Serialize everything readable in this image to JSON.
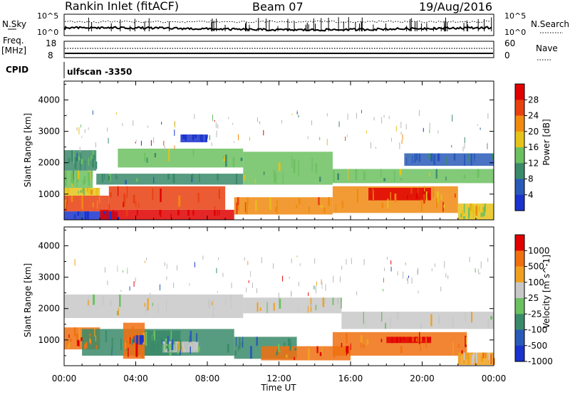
{
  "header": {
    "station": "Rankin Inlet (fitACF)",
    "beam": "Beam 07",
    "date": "19/Aug/2016"
  },
  "strips": {
    "nsky_label": "N.Sky",
    "nsky_ticks": [
      "10^5",
      "10^0"
    ],
    "nsearch_label": "N.Search",
    "nsearch_ticks": [
      "10^5",
      "10^0"
    ],
    "freq_label_1": "Freq.",
    "freq_label_2": "[MHz]",
    "freq_ticks": [
      "18",
      "8"
    ],
    "nave_label": "Nave",
    "nave_ticks": [
      "60",
      "0"
    ],
    "cpid_label": "CPID",
    "cpid_value": "ulfscan -3350"
  },
  "chart_data": [
    {
      "type": "heatmap",
      "name": "power",
      "ylabel": "Slant Range [km]",
      "yticks": [
        1000,
        2000,
        3000,
        4000
      ],
      "ylim": [
        180,
        4600
      ],
      "xlim_hours": [
        0,
        24
      ],
      "colorbar_label": "Power [dB]",
      "colorbar_ticks": [
        "4",
        "8",
        "12",
        "16",
        "20",
        "24",
        "28"
      ],
      "colors": [
        "#1a33cc",
        "#2a5ab8",
        "#3a8a6a",
        "#6cc060",
        "#e6c21a",
        "#f08a10",
        "#e84010",
        "#e00000"
      ],
      "bands": [
        {
          "t0": 0,
          "t1": 1.6,
          "r0": 1200,
          "r1": 1750,
          "level": 3
        },
        {
          "t0": 0,
          "t1": 1.8,
          "r0": 1750,
          "r1": 2400,
          "level": 2
        },
        {
          "t0": 0,
          "t1": 2.5,
          "r0": 450,
          "r1": 950,
          "level": 6
        },
        {
          "t0": 0,
          "t1": 2.0,
          "r0": 950,
          "r1": 1200,
          "level": 4
        },
        {
          "t0": 0,
          "t1": 3.0,
          "r0": 180,
          "r1": 450,
          "level": 0
        },
        {
          "t0": 2.0,
          "t1": 9.5,
          "r0": 180,
          "r1": 500,
          "level": 7
        },
        {
          "t0": 2.5,
          "t1": 9.0,
          "r0": 500,
          "r1": 1250,
          "level": 6
        },
        {
          "t0": 1.8,
          "t1": 10.0,
          "r0": 1300,
          "r1": 1650,
          "level": 2
        },
        {
          "t0": 3.0,
          "t1": 10.0,
          "r0": 1850,
          "r1": 2450,
          "level": 3
        },
        {
          "t0": 6.5,
          "t1": 8.0,
          "r0": 2650,
          "r1": 2900,
          "level": 0
        },
        {
          "t0": 9.5,
          "t1": 15.0,
          "r0": 350,
          "r1": 900,
          "level": 5
        },
        {
          "t0": 10.0,
          "t1": 15.0,
          "r0": 1300,
          "r1": 2350,
          "level": 3
        },
        {
          "t0": 15.0,
          "t1": 22.0,
          "r0": 400,
          "r1": 1250,
          "level": 5
        },
        {
          "t0": 17.0,
          "t1": 20.5,
          "r0": 800,
          "r1": 1200,
          "level": 7
        },
        {
          "t0": 15.0,
          "t1": 24.0,
          "r0": 1350,
          "r1": 1800,
          "level": 3
        },
        {
          "t0": 19.0,
          "t1": 24.0,
          "r0": 1900,
          "r1": 2300,
          "level": 1
        },
        {
          "t0": 22.0,
          "t1": 24.0,
          "r0": 180,
          "r1": 700,
          "level": 4
        }
      ]
    },
    {
      "type": "heatmap",
      "name": "velocity",
      "ylabel": "Slant Range [km]",
      "yticks": [
        1000,
        2000,
        3000,
        4000
      ],
      "ylim": [
        180,
        4600
      ],
      "xlim_hours": [
        0,
        24
      ],
      "colorbar_label": "Velocity [m s^-1]",
      "colorbar_ticks": [
        "1000",
        "500",
        "100",
        "25",
        "-25",
        "-100",
        "-500",
        "-1000"
      ],
      "colors": [
        "#1a33cc",
        "#2a5ab8",
        "#3a8a6a",
        "#6cc060",
        "#c8c8c8",
        "#f0a020",
        "#f07010",
        "#e00000"
      ],
      "bands": [
        {
          "t0": 0,
          "t1": 10.0,
          "r0": 1700,
          "r1": 2450,
          "level": 4
        },
        {
          "t0": 10.0,
          "t1": 15.5,
          "r0": 1850,
          "r1": 2350,
          "level": 4
        },
        {
          "t0": 15.5,
          "t1": 24.0,
          "r0": 1350,
          "r1": 1900,
          "level": 4
        },
        {
          "t0": 0,
          "t1": 2.0,
          "r0": 700,
          "r1": 1400,
          "level": 6
        },
        {
          "t0": 1.0,
          "t1": 9.5,
          "r0": 500,
          "r1": 1350,
          "level": 2
        },
        {
          "t0": 3.3,
          "t1": 4.5,
          "r0": 400,
          "r1": 1550,
          "level": 6
        },
        {
          "t0": 4.5,
          "t1": 6.5,
          "r0": 500,
          "r1": 1300,
          "level": 2
        },
        {
          "t0": 5.5,
          "t1": 7.5,
          "r0": 600,
          "r1": 950,
          "level": 4
        },
        {
          "t0": 3.8,
          "t1": 4.4,
          "r0": 850,
          "r1": 1150,
          "level": 0
        },
        {
          "t0": 9.5,
          "t1": 13.0,
          "r0": 400,
          "r1": 1100,
          "level": 2
        },
        {
          "t0": 11.0,
          "t1": 16.0,
          "r0": 350,
          "r1": 800,
          "level": 6
        },
        {
          "t0": 15.0,
          "t1": 22.5,
          "r0": 500,
          "r1": 1250,
          "level": 6
        },
        {
          "t0": 18.0,
          "t1": 20.5,
          "r0": 900,
          "r1": 1100,
          "level": 7
        },
        {
          "t0": 22.0,
          "t1": 24.0,
          "r0": 200,
          "r1": 600,
          "level": 5
        }
      ]
    }
  ],
  "xaxis": {
    "ticks": [
      "00:00",
      "04:00",
      "08:00",
      "12:00",
      "16:00",
      "20:00",
      "00:00"
    ],
    "label": "Time UT"
  }
}
